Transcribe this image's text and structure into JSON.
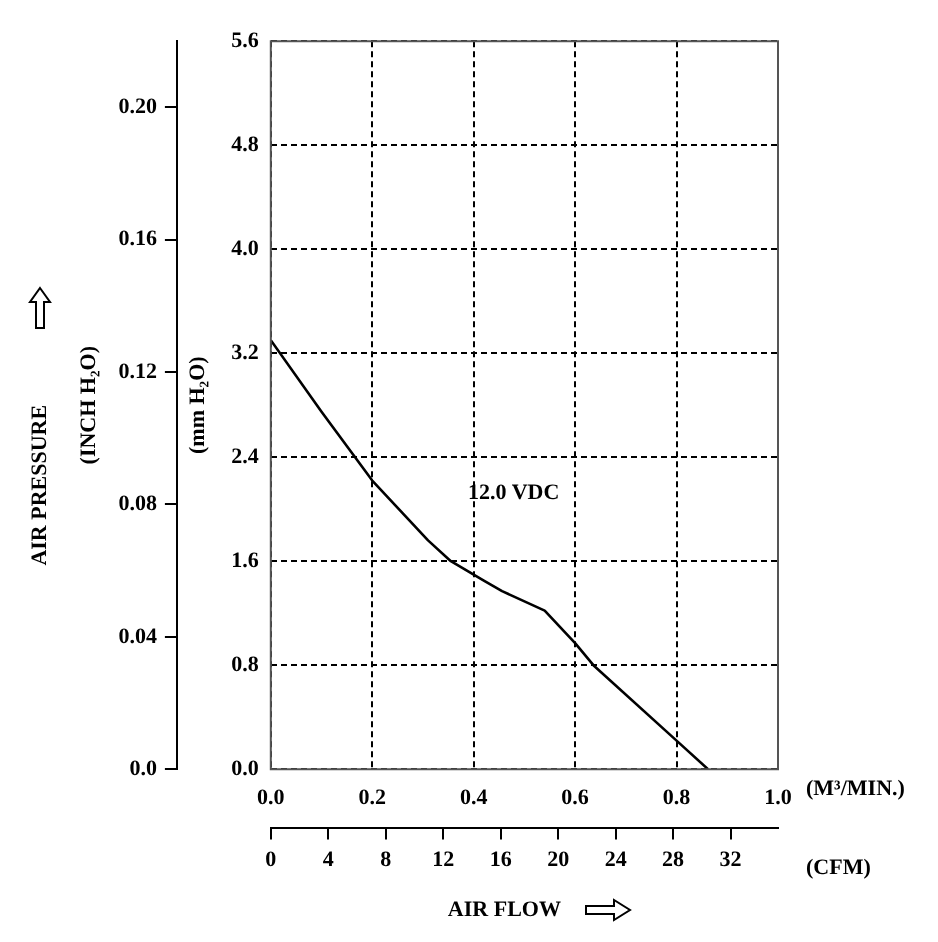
{
  "chart_data": {
    "type": "line",
    "x": [
      0,
      0.1,
      0.2,
      0.31,
      0.355,
      0.42,
      0.456,
      0.54,
      0.6,
      0.636,
      0.8,
      0.862
    ],
    "series": [
      {
        "name": "12.0 VDC",
        "color": "#000000",
        "values": [
          3.3,
          2.75,
          2.22,
          1.76,
          1.6,
          1.45,
          1.37,
          1.22,
          0.97,
          0.8,
          0.22,
          0
        ]
      }
    ],
    "xlim": [
      0,
      1
    ],
    "xticks": [
      {
        "value": 0,
        "label": "0.0"
      },
      0.2,
      0.4,
      0.6,
      0.8,
      {
        "value": 1,
        "label": "1.0"
      }
    ],
    "xlabel": "(M³/MIN.)",
    "x2lim": [
      0,
      35.3
    ],
    "x2ticks": [
      0,
      4,
      8,
      12,
      16,
      20,
      24,
      28,
      32
    ],
    "x2label": "(CFM)",
    "ylim": [
      0,
      5.6
    ],
    "yticks": [
      {
        "value": 0,
        "label": "0.0"
      },
      0.8,
      1.6,
      2.4,
      3.2,
      {
        "value": 4,
        "label": "4.0"
      },
      4.8,
      5.6
    ],
    "ylabel": "(mm H₂O)",
    "y2lim": [
      0,
      0.22
    ],
    "y2ticks": [
      {
        "value": 0,
        "label": "0.0"
      },
      0.04,
      0.08,
      0.12,
      0.16,
      {
        "value": 0.2,
        "label": "0.20"
      }
    ],
    "y2label": "(INCH H₂O)",
    "annotations": [
      "AIR PRESSURE",
      "AIR FLOW"
    ],
    "grid": true,
    "legend": false,
    "marker": "none",
    "line_style": "solid"
  }
}
